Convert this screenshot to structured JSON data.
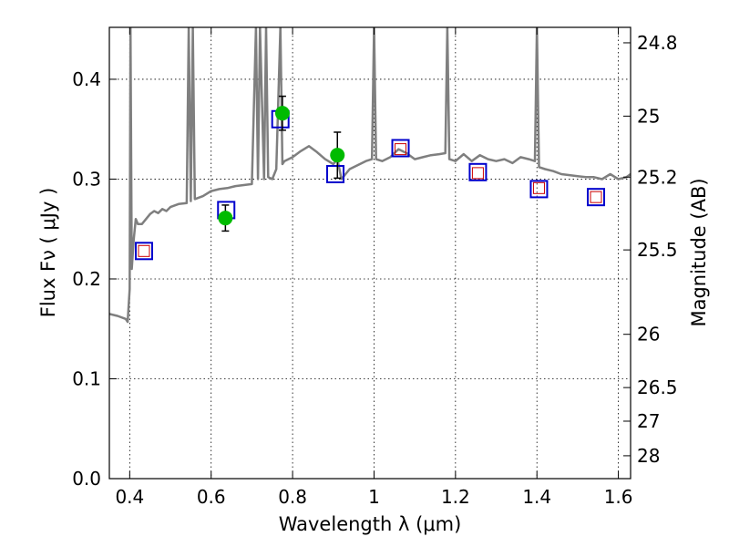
{
  "chart_data": {
    "type": "line",
    "title": "",
    "xlabel": "Wavelength  λ (μm)",
    "ylabel": "Flux  Fν  ( μJy )",
    "y2label": "Magnitude (AB)",
    "xlim": [
      0.35,
      1.63
    ],
    "ylim": [
      0.0,
      0.452
    ],
    "grid": true,
    "x_ticks": [
      {
        "value": 0.4,
        "label": "0.4"
      },
      {
        "value": 0.6,
        "label": "0.6"
      },
      {
        "value": 0.8,
        "label": "0.8"
      },
      {
        "value": 1.0,
        "label": "1"
      },
      {
        "value": 1.2,
        "label": "1.2"
      },
      {
        "value": 1.4,
        "label": "1.4"
      },
      {
        "value": 1.6,
        "label": "1.6"
      }
    ],
    "y_ticks": [
      {
        "value": 0.0,
        "label": "0.0"
      },
      {
        "value": 0.1,
        "label": "0.1"
      },
      {
        "value": 0.2,
        "label": "0.2"
      },
      {
        "value": 0.3,
        "label": "0.3"
      },
      {
        "value": 0.4,
        "label": "0.4"
      }
    ],
    "y2_ticks": [
      {
        "value": 24.8,
        "label": "24.8"
      },
      {
        "value": 25.0,
        "label": "25"
      },
      {
        "value": 25.2,
        "label": "25.2"
      },
      {
        "value": 25.5,
        "label": "25.5"
      },
      {
        "value": 26.0,
        "label": "26"
      },
      {
        "value": 26.5,
        "label": "26.5"
      },
      {
        "value": 27.0,
        "label": "27"
      },
      {
        "value": 28.0,
        "label": "28"
      }
    ],
    "colors": {
      "sed": "#7f7f7f",
      "observed": "#00bb00",
      "model_box": "#0000cc",
      "predicted_box": "#cc0000",
      "error_bar": "#000000"
    },
    "sed_spectrum": {
      "x": [
        0.35,
        0.37,
        0.39,
        0.395,
        0.4,
        0.402,
        0.405,
        0.41,
        0.415,
        0.42,
        0.43,
        0.44,
        0.45,
        0.46,
        0.47,
        0.48,
        0.49,
        0.5,
        0.52,
        0.54,
        0.545,
        0.55,
        0.555,
        0.56,
        0.58,
        0.6,
        0.62,
        0.64,
        0.66,
        0.68,
        0.7,
        0.71,
        0.715,
        0.72,
        0.73,
        0.735,
        0.74,
        0.75,
        0.76,
        0.77,
        0.775,
        0.78,
        0.8,
        0.82,
        0.84,
        0.86,
        0.88,
        0.9,
        0.91,
        0.92,
        0.93,
        0.94,
        0.96,
        0.98,
        0.995,
        1.0,
        1.005,
        1.02,
        1.04,
        1.06,
        1.08,
        1.1,
        1.12,
        1.14,
        1.16,
        1.175,
        1.18,
        1.185,
        1.2,
        1.22,
        1.24,
        1.26,
        1.28,
        1.3,
        1.32,
        1.34,
        1.36,
        1.38,
        1.395,
        1.4,
        1.405,
        1.42,
        1.44,
        1.46,
        1.48,
        1.5,
        1.52,
        1.54,
        1.56,
        1.58,
        1.6,
        1.62,
        1.63
      ],
      "y": [
        0.165,
        0.163,
        0.16,
        0.157,
        0.19,
        0.452,
        0.21,
        0.24,
        0.26,
        0.255,
        0.255,
        0.26,
        0.265,
        0.268,
        0.266,
        0.27,
        0.268,
        0.272,
        0.275,
        0.276,
        0.452,
        0.278,
        0.452,
        0.28,
        0.283,
        0.288,
        0.29,
        0.291,
        0.293,
        0.294,
        0.295,
        0.452,
        0.3,
        0.452,
        0.3,
        0.452,
        0.302,
        0.3,
        0.31,
        0.452,
        0.315,
        0.318,
        0.322,
        0.328,
        0.333,
        0.327,
        0.32,
        0.315,
        0.32,
        0.3,
        0.305,
        0.31,
        0.314,
        0.318,
        0.32,
        0.452,
        0.32,
        0.318,
        0.322,
        0.33,
        0.326,
        0.32,
        0.322,
        0.324,
        0.325,
        0.326,
        0.452,
        0.32,
        0.318,
        0.325,
        0.318,
        0.324,
        0.32,
        0.318,
        0.32,
        0.316,
        0.322,
        0.32,
        0.318,
        0.452,
        0.312,
        0.31,
        0.308,
        0.305,
        0.304,
        0.303,
        0.302,
        0.302,
        0.3,
        0.305,
        0.3,
        0.302,
        0.305
      ]
    },
    "observed": [
      {
        "x": 0.635,
        "y": 0.261,
        "err": 0.013
      },
      {
        "x": 0.775,
        "y": 0.366,
        "err": 0.017
      },
      {
        "x": 0.91,
        "y": 0.324,
        "err": 0.023
      }
    ],
    "model_boxes": [
      {
        "x": 0.435,
        "y": 0.228
      },
      {
        "x": 0.637,
        "y": 0.269
      },
      {
        "x": 0.77,
        "y": 0.36
      },
      {
        "x": 0.905,
        "y": 0.305
      },
      {
        "x": 1.065,
        "y": 0.331
      },
      {
        "x": 1.255,
        "y": 0.307
      },
      {
        "x": 1.405,
        "y": 0.29
      },
      {
        "x": 1.545,
        "y": 0.282
      }
    ],
    "predicted_boxes": [
      {
        "x": 0.435,
        "y": 0.228
      },
      {
        "x": 1.065,
        "y": 0.33
      },
      {
        "x": 1.255,
        "y": 0.306
      },
      {
        "x": 1.405,
        "y": 0.291
      },
      {
        "x": 1.545,
        "y": 0.282
      }
    ]
  }
}
